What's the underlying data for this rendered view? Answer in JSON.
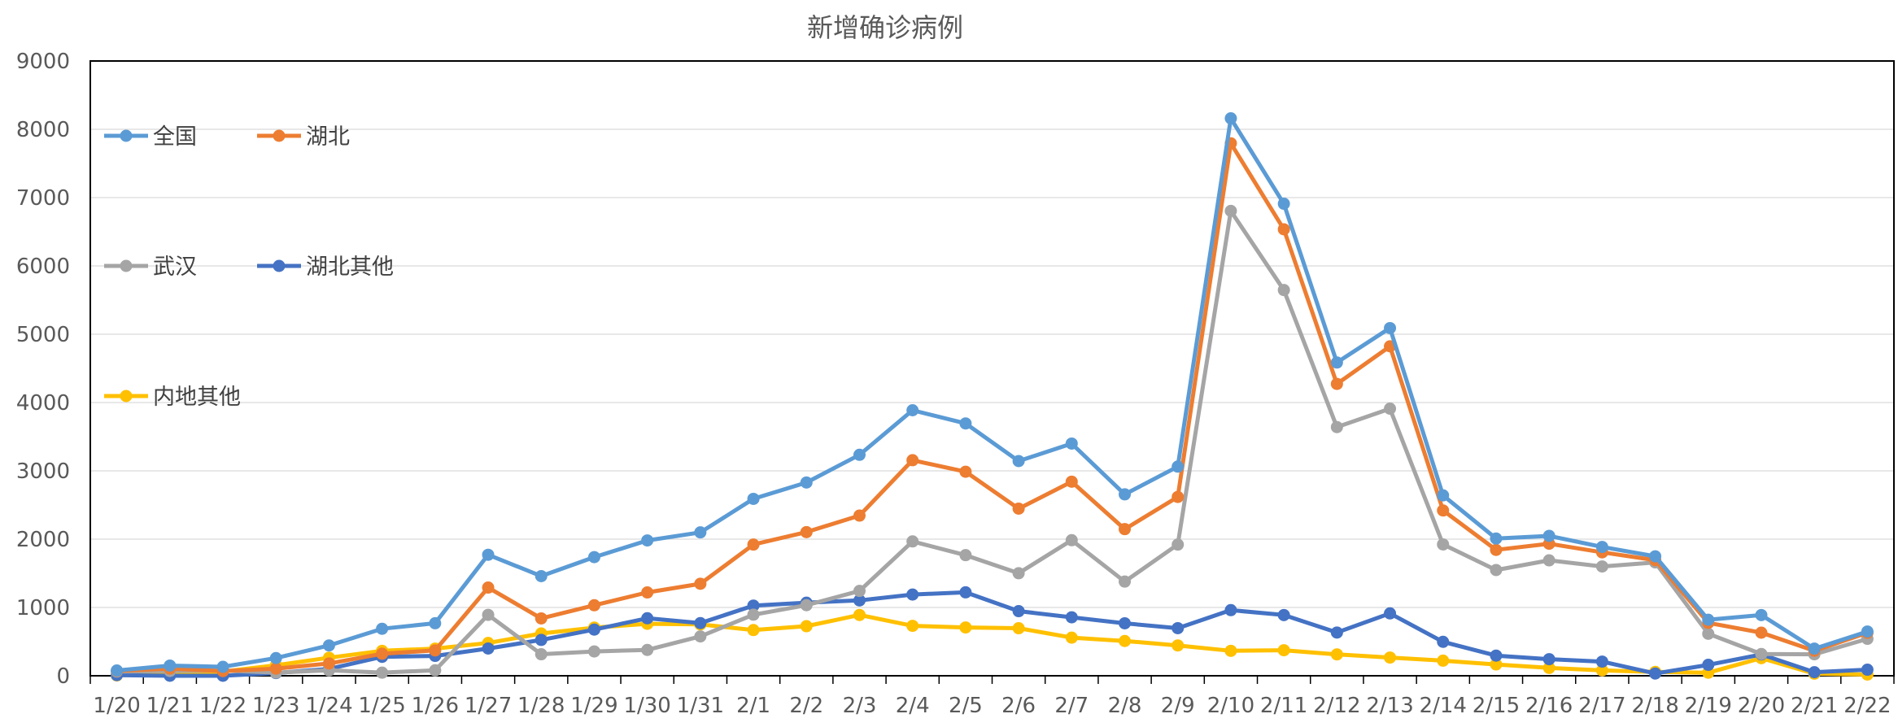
{
  "chart_data": {
    "type": "line",
    "title": "新增确诊病例",
    "xlabel": "",
    "ylabel": "",
    "ylim": [
      0,
      9000
    ],
    "yticks": [
      0,
      1000,
      2000,
      3000,
      4000,
      5000,
      6000,
      7000,
      8000,
      9000
    ],
    "grid": true,
    "legend_position": "left",
    "categories": [
      "1/20",
      "1/21",
      "1/22",
      "1/23",
      "1/24",
      "1/25",
      "1/26",
      "1/27",
      "1/28",
      "1/29",
      "1/30",
      "1/31",
      "2/1",
      "2/2",
      "2/3",
      "2/4",
      "2/5",
      "2/6",
      "2/7",
      "2/8",
      "2/9",
      "2/10",
      "2/11",
      "2/12",
      "2/13",
      "2/14",
      "2/15",
      "2/16",
      "2/17",
      "2/18",
      "2/19",
      "2/20",
      "2/21",
      "2/22"
    ],
    "series": [
      {
        "name": "全国",
        "color": "#5B9BD5",
        "values": [
          77,
          149,
          131,
          259,
          444,
          688,
          769,
          1771,
          1459,
          1737,
          1981,
          2099,
          2590,
          2829,
          3235,
          3887,
          3694,
          3143,
          3399,
          2656,
          3062,
          8160,
          6910,
          4586,
          5090,
          2641,
          2009,
          2048,
          1886,
          1749,
          820,
          889,
          397,
          648
        ]
      },
      {
        "name": "湖北",
        "color": "#ED7D31",
        "values": [
          72,
          105,
          69,
          105,
          180,
          323,
          371,
          1291,
          840,
          1032,
          1220,
          1347,
          1921,
          2103,
          2345,
          3156,
          2987,
          2447,
          2841,
          2147,
          2618,
          7795,
          6536,
          4273,
          4823,
          2420,
          1843,
          1933,
          1807,
          1693,
          775,
          631,
          366,
          630
        ]
      },
      {
        "name": "武汉",
        "color": "#A5A5A5",
        "values": [
          62,
          70,
          77,
          46,
          80,
          46,
          80,
          892,
          315,
          356,
          378,
          576,
          894,
          1033,
          1242,
          1967,
          1766,
          1501,
          1985,
          1379,
          1921,
          6805,
          5647,
          3640,
          3910,
          1923,
          1548,
          1690,
          1600,
          1660,
          615,
          319,
          314,
          541
        ]
      },
      {
        "name": "湖北其他",
        "color": "#4472C4",
        "values": [
          10,
          0,
          0,
          40,
          100,
          277,
          291,
          399,
          525,
          676,
          842,
          771,
          1027,
          1070,
          1103,
          1189,
          1221,
          946,
          856,
          768,
          697,
          961,
          889,
          633,
          913,
          497,
          295,
          243,
          207,
          33,
          160,
          312,
          52,
          89
        ]
      },
      {
        "name": "内地其他",
        "color": "#FFC000",
        "values": [
          5,
          44,
          62,
          154,
          264,
          365,
          398,
          480,
          619,
          705,
          761,
          752,
          669,
          726,
          890,
          731,
          707,
          696,
          558,
          509,
          444,
          365,
          374,
          313,
          267,
          221,
          166,
          115,
          79,
          56,
          45,
          258,
          31,
          18
        ]
      }
    ]
  }
}
